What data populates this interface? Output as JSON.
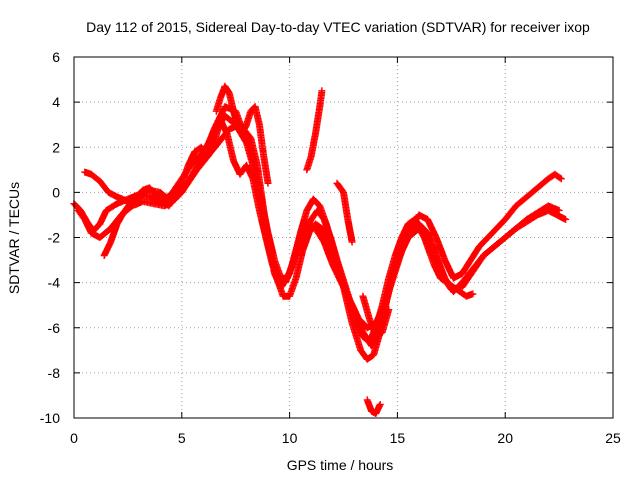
{
  "chart_data": {
    "type": "scatter",
    "title": "Day 112 of 2015, Sidereal Day-to-day VTEC variation (SDTVAR) for receiver ixop",
    "xlabel": "GPS time / hours",
    "ylabel": "SDTVAR / TECUs",
    "xlim": [
      0,
      25
    ],
    "ylim": [
      -10,
      6
    ],
    "x_ticks": [
      "0",
      "5",
      "10",
      "15",
      "20",
      "25"
    ],
    "y_ticks": [
      "-10",
      "-8",
      "-6",
      "-4",
      "-2",
      "0",
      "2",
      "4",
      "6"
    ],
    "grid": true,
    "marker": "+",
    "series_color": "#ff0000",
    "series": [
      {
        "x": [
          0.0,
          0.3,
          0.6,
          0.9,
          1.2,
          1.5,
          2.0,
          2.5,
          3.0,
          3.5,
          4.0,
          4.5,
          5.0,
          5.5,
          6.0,
          6.5,
          7.0,
          7.5,
          8.0,
          8.3,
          8.6,
          9.0,
          9.3,
          9.6,
          10.0,
          10.4,
          10.8,
          11.2,
          11.6,
          12.0,
          12.5,
          13.0,
          13.4,
          13.8,
          14.2,
          14.6,
          15.0,
          15.5,
          16.0,
          16.5,
          17.0,
          17.5,
          18.0,
          18.5,
          19.0,
          19.5,
          20.0,
          20.5,
          21.0,
          21.5,
          22.0,
          22.5
        ],
        "y": [
          -0.5,
          -0.8,
          -1.3,
          -1.7,
          -1.4,
          -0.8,
          -0.5,
          -0.3,
          -0.1,
          -0.2,
          -0.4,
          -0.1,
          0.6,
          1.3,
          1.8,
          2.6,
          3.4,
          3.0,
          2.2,
          1.2,
          0.0,
          -2.0,
          -3.6,
          -4.2,
          -3.6,
          -2.2,
          -1.4,
          -1.6,
          -2.2,
          -3.2,
          -4.2,
          -5.2,
          -6.2,
          -6.8,
          -6.0,
          -4.4,
          -3.0,
          -2.0,
          -1.6,
          -2.4,
          -3.6,
          -4.3,
          -4.2,
          -3.5,
          -2.8,
          -2.4,
          -2.0,
          -1.6,
          -1.2,
          -0.9,
          -0.6,
          -0.8
        ]
      },
      {
        "x": [
          0.2,
          0.5,
          0.8,
          1.2,
          1.7,
          2.2,
          2.7,
          3.2,
          3.7,
          4.2,
          4.7,
          5.2,
          5.7,
          6.2,
          6.7,
          7.2,
          7.7,
          8.2,
          8.5,
          8.8,
          9.1,
          9.4,
          9.7,
          10.0,
          10.3,
          10.6,
          10.9,
          11.2,
          11.5,
          11.8,
          12.1,
          12.5,
          12.9,
          13.3,
          13.6,
          13.9,
          14.2,
          14.5,
          14.8,
          15.2,
          15.6,
          16.0,
          16.4,
          16.8,
          17.2,
          17.6,
          18.0,
          18.5,
          19.0,
          19.5,
          20.0,
          20.5,
          21.0,
          21.5,
          22.0,
          22.4,
          22.8
        ],
        "y": [
          -0.8,
          -1.2,
          -1.8,
          -2.0,
          -1.6,
          -1.0,
          -0.6,
          -0.4,
          -0.5,
          -0.6,
          -0.3,
          0.3,
          1.0,
          1.6,
          2.2,
          2.8,
          3.0,
          2.4,
          1.2,
          -0.8,
          -2.6,
          -3.8,
          -4.6,
          -4.6,
          -3.8,
          -2.6,
          -1.8,
          -1.4,
          -1.6,
          -2.2,
          -3.0,
          -4.2,
          -5.8,
          -7.0,
          -7.4,
          -7.2,
          -6.2,
          -4.8,
          -3.6,
          -2.6,
          -1.8,
          -1.4,
          -1.8,
          -2.8,
          -3.8,
          -4.4,
          -4.0,
          -3.4,
          -2.8,
          -2.4,
          -2.0,
          -1.6,
          -1.3,
          -1.0,
          -0.8,
          -1.0,
          -1.2
        ]
      },
      {
        "x": [
          0.5,
          0.8,
          1.2,
          1.6,
          2.0,
          2.5,
          3.0,
          3.5,
          4.0,
          4.5,
          5.0,
          5.5,
          6.0,
          6.5,
          7.0,
          7.5,
          7.8,
          8.1,
          8.4,
          8.7,
          9.0,
          9.3,
          9.6,
          9.9,
          10.2,
          10.5,
          10.8,
          11.1,
          11.4,
          11.7,
          12.0,
          12.4,
          12.8,
          13.2,
          13.6,
          14.0,
          14.4,
          14.8,
          15.2,
          15.6,
          16.0,
          16.4,
          16.8,
          17.2,
          17.6,
          18.0,
          18.4,
          18.8,
          19.2,
          19.6,
          20.0,
          20.5,
          21.0,
          21.5,
          22.0,
          22.3,
          22.6
        ],
        "y": [
          0.9,
          0.8,
          0.5,
          0.0,
          -0.2,
          -0.4,
          -0.2,
          0.1,
          0.0,
          -0.4,
          0.0,
          0.8,
          1.6,
          2.8,
          3.8,
          3.6,
          2.8,
          2.2,
          1.0,
          -0.4,
          -1.8,
          -3.0,
          -3.8,
          -3.8,
          -3.0,
          -1.8,
          -0.8,
          -0.3,
          -0.6,
          -1.4,
          -2.4,
          -3.6,
          -4.8,
          -5.6,
          -6.0,
          -5.8,
          -5.0,
          -3.8,
          -2.6,
          -1.6,
          -1.0,
          -1.2,
          -2.0,
          -3.0,
          -3.8,
          -3.6,
          -3.0,
          -2.4,
          -2.0,
          -1.6,
          -1.2,
          -0.6,
          -0.2,
          0.2,
          0.6,
          0.8,
          0.6
        ]
      },
      {
        "x": [
          1.4,
          1.7,
          2.0,
          2.3,
          2.6,
          2.9,
          3.2,
          3.5,
          3.8,
          4.1,
          4.4,
          4.7,
          5.0,
          5.3,
          5.6,
          5.9,
          6.2,
          6.5,
          6.8,
          7.1,
          7.4,
          7.7,
          8.0,
          8.3,
          8.6,
          8.9,
          9.2,
          9.5,
          9.8,
          10.1,
          10.4,
          10.7,
          11.0,
          11.3,
          11.6,
          11.9,
          12.2,
          12.5,
          12.8,
          13.1,
          13.4,
          13.7,
          14.0,
          14.3,
          14.6,
          14.9,
          15.2,
          15.5,
          15.8,
          16.1,
          16.4,
          16.7,
          17.0,
          17.3,
          17.6,
          17.9,
          18.2,
          18.5
        ],
        "y": [
          -2.8,
          -2.2,
          -1.4,
          -0.9,
          -0.5,
          -0.2,
          0.1,
          0.2,
          -0.1,
          -0.4,
          -0.6,
          -0.2,
          0.4,
          1.2,
          1.8,
          2.0,
          1.6,
          2.2,
          3.2,
          2.6,
          1.4,
          0.8,
          1.2,
          0.6,
          -0.8,
          -2.0,
          -3.2,
          -3.9,
          -4.0,
          -3.3,
          -2.4,
          -1.8,
          -1.2,
          -0.8,
          -1.2,
          -2.0,
          -3.0,
          -4.0,
          -5.0,
          -5.8,
          -6.4,
          -6.6,
          -6.0,
          -5.0,
          -3.8,
          -2.8,
          -2.0,
          -1.4,
          -1.2,
          -1.6,
          -2.4,
          -3.2,
          -3.8,
          -4.0,
          -4.2,
          -4.4,
          -4.6,
          -4.5
        ]
      },
      {
        "x": [
          6.6,
          6.8,
          7.0,
          7.2,
          7.4,
          7.6,
          7.8,
          8.0,
          8.2,
          8.4,
          8.6,
          8.8,
          9.0
        ],
        "y": [
          3.6,
          4.2,
          4.7,
          4.4,
          3.6,
          2.9,
          2.6,
          3.0,
          3.6,
          3.8,
          3.0,
          1.6,
          0.4
        ]
      },
      {
        "x": [
          10.8,
          11.0,
          11.2,
          11.4,
          11.5
        ],
        "y": [
          1.0,
          1.6,
          2.6,
          3.8,
          4.5
        ]
      },
      {
        "x": [
          12.2,
          12.5,
          12.7,
          12.9
        ],
        "y": [
          0.4,
          0.0,
          -1.2,
          -2.2
        ]
      },
      {
        "x": [
          13.6,
          13.8,
          14.0,
          14.2
        ],
        "y": [
          -9.2,
          -9.7,
          -9.8,
          -9.4
        ]
      },
      {
        "x": [
          13.4,
          13.7,
          14.0,
          14.3,
          14.6
        ],
        "y": [
          -4.6,
          -5.6,
          -6.4,
          -6.2,
          -5.2
        ]
      }
    ]
  }
}
